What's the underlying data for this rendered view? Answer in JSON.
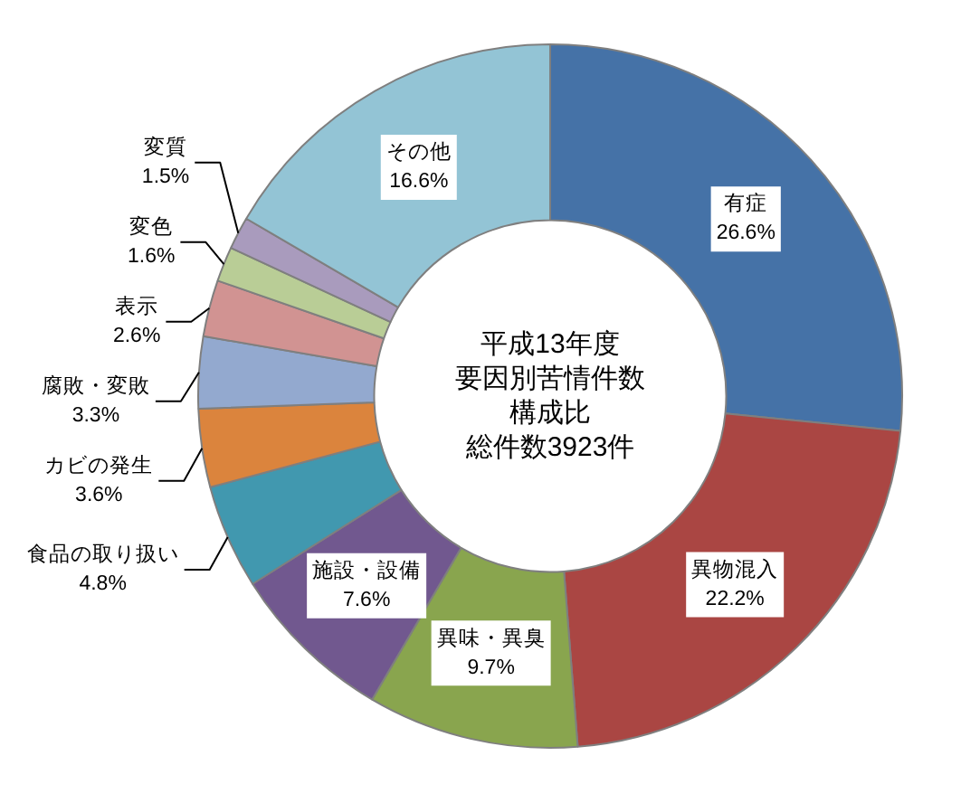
{
  "chart_data": {
    "type": "donut",
    "title": "平成13年度要因別苦情件数構成比",
    "subtitle": "総件数3923件",
    "categories": [
      "有症",
      "異物混入",
      "異味・異臭",
      "施設・設備",
      "食品の取り扱い",
      "カビの発生",
      "腐敗・変敗",
      "表示",
      "変色",
      "変質",
      "その他"
    ],
    "values": [
      26.6,
      22.2,
      9.7,
      7.6,
      4.8,
      3.6,
      3.3,
      2.6,
      1.6,
      1.5,
      16.6
    ],
    "value_labels": [
      "26.6%",
      "22.2%",
      "9.7%",
      "7.6%",
      "4.8%",
      "3.6%",
      "3.3%",
      "2.6%",
      "1.6%",
      "1.5%",
      "16.6%"
    ],
    "colors": [
      "#4572a7",
      "#aa4643",
      "#89a54e",
      "#71588f",
      "#4198af",
      "#db843d",
      "#93a9cf",
      "#d19392",
      "#b9cd96",
      "#a99bbd",
      "#93c4d5"
    ],
    "legend": false
  }
}
